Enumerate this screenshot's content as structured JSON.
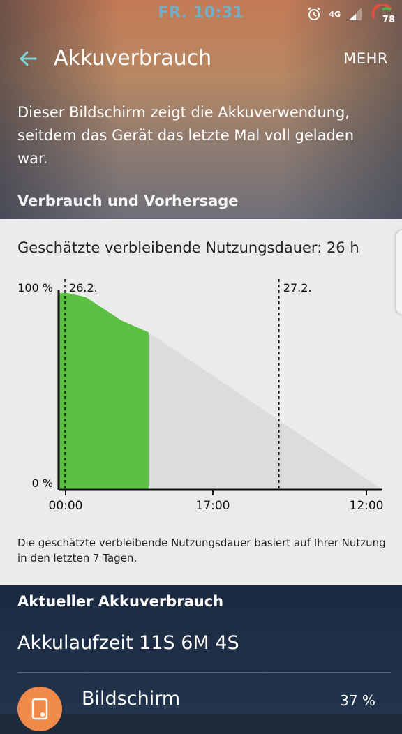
{
  "statusbar": {
    "time": "FR. 10:31",
    "network": "4G",
    "battery_level": "78",
    "icons": [
      "alarm-icon",
      "network-4g-icon",
      "signal-icon",
      "battery-icon"
    ]
  },
  "appbar": {
    "title": "Akkuverbrauch",
    "more_label": "MEHR",
    "back_icon": "back-arrow-icon"
  },
  "intro": {
    "description": "Dieser Bildschirm zeigt die Akkuverwendung, seitdem das Gerät das letzte Mal voll geladen war."
  },
  "usage_section": {
    "heading": "Verbrauch und Vorhersage",
    "estimate": "Geschätzte verbleibende Nutzungsdauer: 26 h",
    "footnote": "Die geschätzte verbleibende Nutzungsdauer basiert auf Ihrer Nutzung in den letzten 7 Tagen."
  },
  "chart_data": {
    "type": "area",
    "title": "",
    "xlabel": "",
    "ylabel": "",
    "ylim": [
      0,
      100
    ],
    "y_tick_labels": [
      "100 %",
      "0 %"
    ],
    "x_tick_labels": [
      "00:00",
      "17:00",
      "12:00"
    ],
    "day_markers": [
      "26.2.",
      "27.2."
    ],
    "series": [
      {
        "kind": "actual",
        "color": "#5bbf41",
        "x_hours": [
          0,
          1,
          2,
          3,
          4,
          5,
          6,
          7,
          8,
          9,
          10
        ],
        "values": [
          100,
          100,
          99,
          98,
          95,
          92,
          89,
          86,
          84,
          82,
          80
        ]
      },
      {
        "kind": "prediction",
        "color": "#dcdcdc",
        "x_hours": [
          10,
          36
        ],
        "values": [
          80,
          0
        ]
      }
    ],
    "x_range_hours": [
      0,
      36
    ],
    "grid": false
  },
  "current_section": {
    "heading": "Aktueller Akkuverbrauch",
    "runtime": "Akkulaufzeit 11S 6M 4S",
    "items": [
      {
        "label": "Bildschirm",
        "value": "37 %",
        "icon": "screen-brightness-icon",
        "color": "#f08a4b"
      }
    ]
  }
}
